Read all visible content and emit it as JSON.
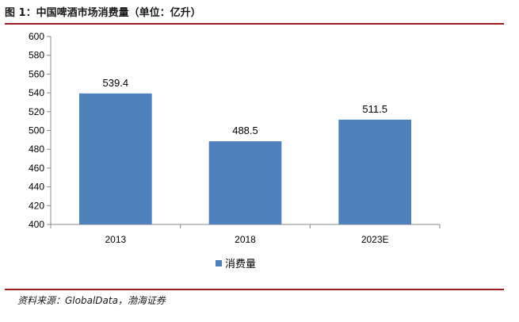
{
  "figure": {
    "title": "图 1：中国啤酒市场消费量（单位：亿升）",
    "source": "资料来源：GlobalData，渤海证券"
  },
  "chart_data": {
    "type": "bar",
    "categories": [
      "2013",
      "2018",
      "2023E"
    ],
    "series": [
      {
        "name": "消费量",
        "values": [
          539.4,
          488.5,
          511.5
        ],
        "color": "#4f81bd"
      }
    ],
    "data_labels": [
      "539.4",
      "488.5",
      "511.5"
    ],
    "ylim": [
      400,
      600
    ],
    "yticks": [
      400,
      420,
      440,
      460,
      480,
      500,
      520,
      540,
      560,
      580,
      600
    ],
    "grid": false,
    "legend": "bottom-center"
  }
}
